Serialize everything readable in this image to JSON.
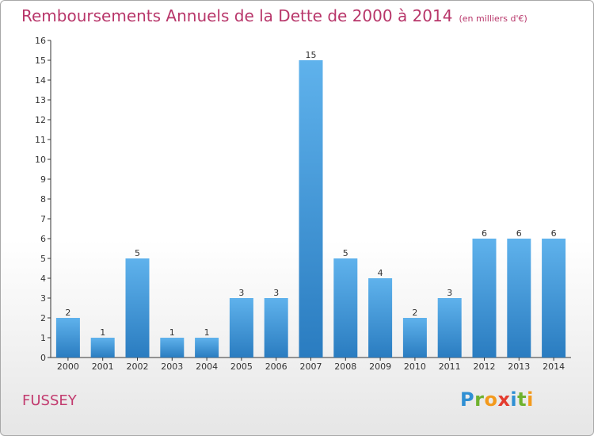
{
  "chart_data": {
    "type": "bar",
    "title": "Remboursements Annuels de la Dette de 2000 à 2014",
    "subtitle": "(en milliers d'€)",
    "categories": [
      "2000",
      "2001",
      "2002",
      "2003",
      "2004",
      "2005",
      "2006",
      "2007",
      "2008",
      "2009",
      "2010",
      "2011",
      "2012",
      "2013",
      "2014"
    ],
    "values": [
      2,
      1,
      5,
      1,
      1,
      3,
      3,
      15,
      5,
      4,
      2,
      3,
      6,
      6,
      6
    ],
    "ylim": [
      0,
      16
    ],
    "yticks": [
      0,
      1,
      2,
      3,
      4,
      5,
      6,
      7,
      8,
      9,
      10,
      11,
      12,
      13,
      14,
      15,
      16
    ],
    "grid": false,
    "bar_color": "#4a9fe0"
  },
  "footer": {
    "commune": "FUSSEY",
    "logo": "Proxiti"
  }
}
